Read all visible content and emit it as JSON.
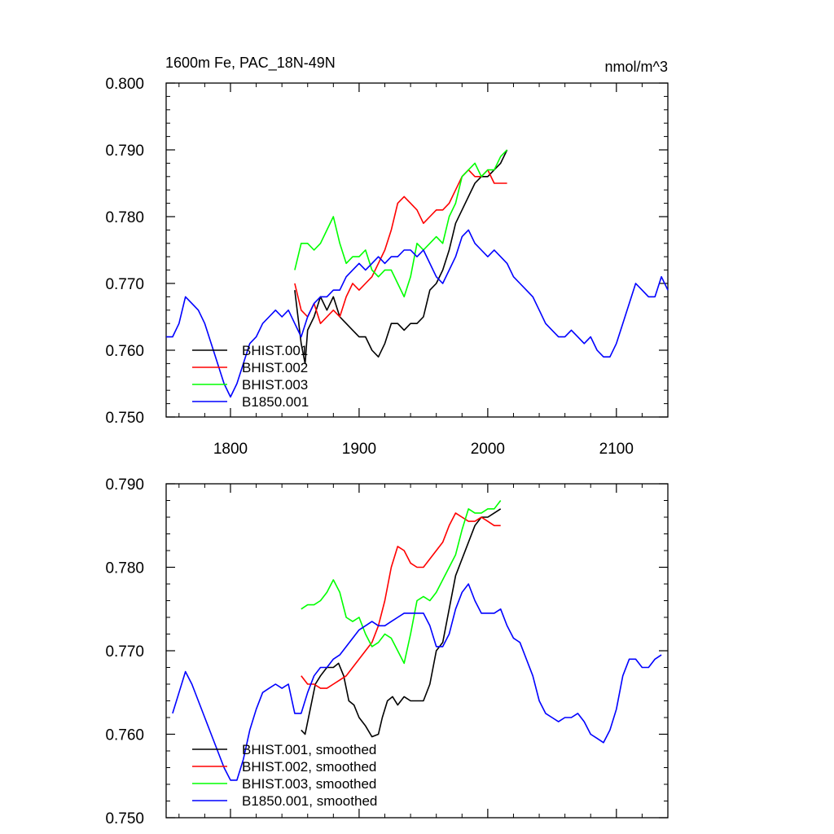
{
  "chart_data": [
    {
      "type": "line",
      "title_left": "1600m Fe, PAC_18N-49N",
      "title_right": "nmol/m^3",
      "xlim": [
        1750,
        2140
      ],
      "ylim": [
        0.75,
        0.8
      ],
      "x_ticks": [
        1800,
        1900,
        2000,
        2100
      ],
      "x_tick_labels": [
        "1800",
        "1900",
        "2000",
        "2100"
      ],
      "y_ticks": [
        0.75,
        0.76,
        0.77,
        0.78,
        0.79,
        0.8
      ],
      "y_tick_labels": [
        "0.750",
        "0.760",
        "0.770",
        "0.780",
        "0.790",
        "0.800"
      ],
      "legend_position": "bottom-left",
      "series": [
        {
          "name": "BHIST.001",
          "color": "#000000",
          "x": [
            1850,
            1855,
            1858,
            1860,
            1865,
            1870,
            1875,
            1880,
            1885,
            1890,
            1895,
            1900,
            1905,
            1910,
            1915,
            1920,
            1925,
            1930,
            1935,
            1940,
            1945,
            1950,
            1955,
            1960,
            1965,
            1970,
            1975,
            1980,
            1985,
            1990,
            1995,
            2000,
            2005,
            2010,
            2015
          ],
          "y": [
            0.769,
            0.761,
            0.758,
            0.763,
            0.765,
            0.768,
            0.766,
            0.768,
            0.765,
            0.764,
            0.763,
            0.762,
            0.762,
            0.76,
            0.759,
            0.761,
            0.764,
            0.764,
            0.763,
            0.764,
            0.764,
            0.765,
            0.769,
            0.77,
            0.772,
            0.775,
            0.779,
            0.781,
            0.783,
            0.785,
            0.786,
            0.786,
            0.787,
            0.788,
            0.79
          ]
        },
        {
          "name": "BHIST.002",
          "color": "#ff0000",
          "x": [
            1850,
            1855,
            1860,
            1865,
            1870,
            1875,
            1880,
            1885,
            1890,
            1895,
            1900,
            1905,
            1910,
            1915,
            1920,
            1925,
            1930,
            1935,
            1940,
            1945,
            1950,
            1955,
            1960,
            1965,
            1970,
            1975,
            1980,
            1985,
            1990,
            1995,
            2000,
            2005,
            2010,
            2015
          ],
          "y": [
            0.77,
            0.766,
            0.765,
            0.767,
            0.764,
            0.765,
            0.766,
            0.765,
            0.768,
            0.77,
            0.769,
            0.77,
            0.771,
            0.773,
            0.775,
            0.778,
            0.782,
            0.783,
            0.782,
            0.781,
            0.779,
            0.78,
            0.781,
            0.781,
            0.782,
            0.784,
            0.786,
            0.787,
            0.786,
            0.786,
            0.787,
            0.785,
            0.785,
            0.785
          ]
        },
        {
          "name": "BHIST.003",
          "color": "#00ff00",
          "x": [
            1850,
            1855,
            1860,
            1865,
            1870,
            1875,
            1880,
            1885,
            1890,
            1895,
            1900,
            1905,
            1910,
            1915,
            1920,
            1925,
            1930,
            1935,
            1940,
            1945,
            1950,
            1955,
            1960,
            1965,
            1970,
            1975,
            1980,
            1985,
            1990,
            1995,
            2000,
            2005,
            2010,
            2015
          ],
          "y": [
            0.772,
            0.776,
            0.776,
            0.775,
            0.776,
            0.778,
            0.78,
            0.776,
            0.773,
            0.774,
            0.774,
            0.775,
            0.772,
            0.771,
            0.772,
            0.772,
            0.77,
            0.768,
            0.771,
            0.776,
            0.775,
            0.776,
            0.777,
            0.776,
            0.78,
            0.782,
            0.786,
            0.787,
            0.788,
            0.786,
            0.787,
            0.787,
            0.789,
            0.79
          ]
        },
        {
          "name": "B1850.001",
          "color": "#0000ff",
          "x": [
            1750,
            1755,
            1760,
            1765,
            1770,
            1775,
            1780,
            1785,
            1790,
            1795,
            1800,
            1805,
            1810,
            1815,
            1820,
            1825,
            1830,
            1835,
            1840,
            1845,
            1850,
            1855,
            1860,
            1865,
            1870,
            1875,
            1880,
            1885,
            1890,
            1895,
            1900,
            1905,
            1910,
            1915,
            1920,
            1925,
            1930,
            1935,
            1940,
            1945,
            1950,
            1955,
            1960,
            1965,
            1970,
            1975,
            1980,
            1985,
            1990,
            1995,
            2000,
            2005,
            2010,
            2015,
            2020,
            2025,
            2030,
            2035,
            2040,
            2045,
            2050,
            2055,
            2060,
            2065,
            2070,
            2075,
            2080,
            2085,
            2090,
            2095,
            2100,
            2105,
            2110,
            2115,
            2120,
            2125,
            2130,
            2135,
            2140
          ],
          "y": [
            0.762,
            0.762,
            0.764,
            0.768,
            0.767,
            0.766,
            0.764,
            0.761,
            0.758,
            0.755,
            0.753,
            0.755,
            0.758,
            0.761,
            0.762,
            0.764,
            0.765,
            0.766,
            0.765,
            0.766,
            0.764,
            0.762,
            0.765,
            0.767,
            0.768,
            0.768,
            0.769,
            0.769,
            0.771,
            0.772,
            0.773,
            0.772,
            0.773,
            0.774,
            0.773,
            0.774,
            0.774,
            0.775,
            0.775,
            0.774,
            0.775,
            0.773,
            0.771,
            0.77,
            0.772,
            0.774,
            0.777,
            0.778,
            0.776,
            0.775,
            0.774,
            0.775,
            0.774,
            0.773,
            0.771,
            0.77,
            0.769,
            0.768,
            0.766,
            0.764,
            0.763,
            0.762,
            0.762,
            0.763,
            0.762,
            0.761,
            0.762,
            0.76,
            0.759,
            0.759,
            0.761,
            0.764,
            0.767,
            0.77,
            0.769,
            0.768,
            0.768,
            0.771,
            0.769
          ]
        }
      ]
    },
    {
      "type": "line",
      "xlim": [
        1750,
        2140
      ],
      "ylim": [
        0.75,
        0.79
      ],
      "x_ticks": [
        1800,
        1900,
        2000,
        2100
      ],
      "y_ticks": [
        0.75,
        0.76,
        0.77,
        0.78,
        0.79
      ],
      "y_tick_labels": [
        "0.750",
        "0.760",
        "0.770",
        "0.780",
        "0.790"
      ],
      "legend_position": "bottom-left",
      "series": [
        {
          "name": "BHIST.001, smoothed",
          "color": "#000000",
          "x": [
            1855,
            1858,
            1862,
            1866,
            1870,
            1875,
            1880,
            1884,
            1888,
            1892,
            1896,
            1900,
            1905,
            1910,
            1915,
            1918,
            1922,
            1926,
            1930,
            1935,
            1940,
            1945,
            1950,
            1955,
            1960,
            1965,
            1970,
            1975,
            1980,
            1985,
            1990,
            1995,
            2000,
            2005,
            2010
          ],
          "y": [
            0.7605,
            0.76,
            0.763,
            0.766,
            0.767,
            0.768,
            0.768,
            0.7685,
            0.767,
            0.764,
            0.7635,
            0.762,
            0.761,
            0.7597,
            0.76,
            0.762,
            0.764,
            0.7645,
            0.7635,
            0.7645,
            0.764,
            0.764,
            0.764,
            0.766,
            0.77,
            0.771,
            0.775,
            0.779,
            0.781,
            0.783,
            0.785,
            0.786,
            0.786,
            0.7865,
            0.787
          ]
        },
        {
          "name": "BHIST.002, smoothed",
          "color": "#ff0000",
          "x": [
            1855,
            1860,
            1865,
            1870,
            1875,
            1880,
            1885,
            1890,
            1895,
            1900,
            1905,
            1910,
            1915,
            1920,
            1925,
            1930,
            1935,
            1940,
            1945,
            1950,
            1955,
            1960,
            1965,
            1970,
            1975,
            1980,
            1985,
            1990,
            1995,
            2000,
            2005,
            2010
          ],
          "y": [
            0.767,
            0.766,
            0.766,
            0.7655,
            0.7655,
            0.766,
            0.7665,
            0.767,
            0.768,
            0.769,
            0.77,
            0.771,
            0.773,
            0.776,
            0.78,
            0.7825,
            0.782,
            0.7805,
            0.78,
            0.78,
            0.781,
            0.782,
            0.783,
            0.785,
            0.7865,
            0.786,
            0.7855,
            0.7855,
            0.786,
            0.7855,
            0.785,
            0.785
          ]
        },
        {
          "name": "BHIST.003, smoothed",
          "color": "#00ff00",
          "x": [
            1855,
            1860,
            1865,
            1870,
            1875,
            1880,
            1885,
            1890,
            1895,
            1900,
            1905,
            1910,
            1915,
            1920,
            1925,
            1930,
            1935,
            1940,
            1945,
            1950,
            1955,
            1960,
            1965,
            1970,
            1975,
            1980,
            1985,
            1990,
            1995,
            2000,
            2005,
            2010
          ],
          "y": [
            0.775,
            0.7755,
            0.7755,
            0.776,
            0.777,
            0.7785,
            0.777,
            0.774,
            0.7735,
            0.774,
            0.772,
            0.7705,
            0.771,
            0.772,
            0.7715,
            0.77,
            0.7685,
            0.772,
            0.776,
            0.7765,
            0.776,
            0.777,
            0.7785,
            0.78,
            0.7815,
            0.7845,
            0.787,
            0.7865,
            0.7865,
            0.787,
            0.787,
            0.788
          ]
        },
        {
          "name": "B1850.001, smoothed",
          "color": "#0000ff",
          "x": [
            1755,
            1760,
            1765,
            1770,
            1775,
            1780,
            1785,
            1790,
            1795,
            1800,
            1805,
            1810,
            1815,
            1820,
            1825,
            1830,
            1835,
            1840,
            1845,
            1850,
            1855,
            1860,
            1865,
            1870,
            1875,
            1880,
            1885,
            1890,
            1895,
            1900,
            1905,
            1910,
            1915,
            1920,
            1925,
            1930,
            1935,
            1940,
            1945,
            1950,
            1955,
            1960,
            1965,
            1970,
            1975,
            1980,
            1985,
            1990,
            1995,
            2000,
            2005,
            2010,
            2015,
            2020,
            2025,
            2030,
            2035,
            2040,
            2045,
            2050,
            2055,
            2060,
            2065,
            2070,
            2075,
            2080,
            2085,
            2090,
            2095,
            2100,
            2105,
            2110,
            2115,
            2120,
            2125,
            2130,
            2135
          ],
          "y": [
            0.7625,
            0.765,
            0.7675,
            0.766,
            0.764,
            0.762,
            0.76,
            0.758,
            0.756,
            0.7545,
            0.7545,
            0.757,
            0.7605,
            0.763,
            0.765,
            0.7655,
            0.766,
            0.7655,
            0.766,
            0.7625,
            0.7625,
            0.765,
            0.767,
            0.768,
            0.768,
            0.769,
            0.7695,
            0.7705,
            0.7715,
            0.7725,
            0.773,
            0.7735,
            0.773,
            0.773,
            0.7735,
            0.774,
            0.7745,
            0.7745,
            0.7745,
            0.7745,
            0.773,
            0.7705,
            0.7705,
            0.772,
            0.775,
            0.777,
            0.778,
            0.776,
            0.7745,
            0.7745,
            0.7745,
            0.775,
            0.773,
            0.7715,
            0.771,
            0.769,
            0.767,
            0.764,
            0.7625,
            0.762,
            0.7615,
            0.762,
            0.762,
            0.7625,
            0.7615,
            0.76,
            0.7595,
            0.759,
            0.7605,
            0.763,
            0.767,
            0.769,
            0.769,
            0.768,
            0.768,
            0.769,
            0.7695
          ]
        }
      ]
    }
  ]
}
